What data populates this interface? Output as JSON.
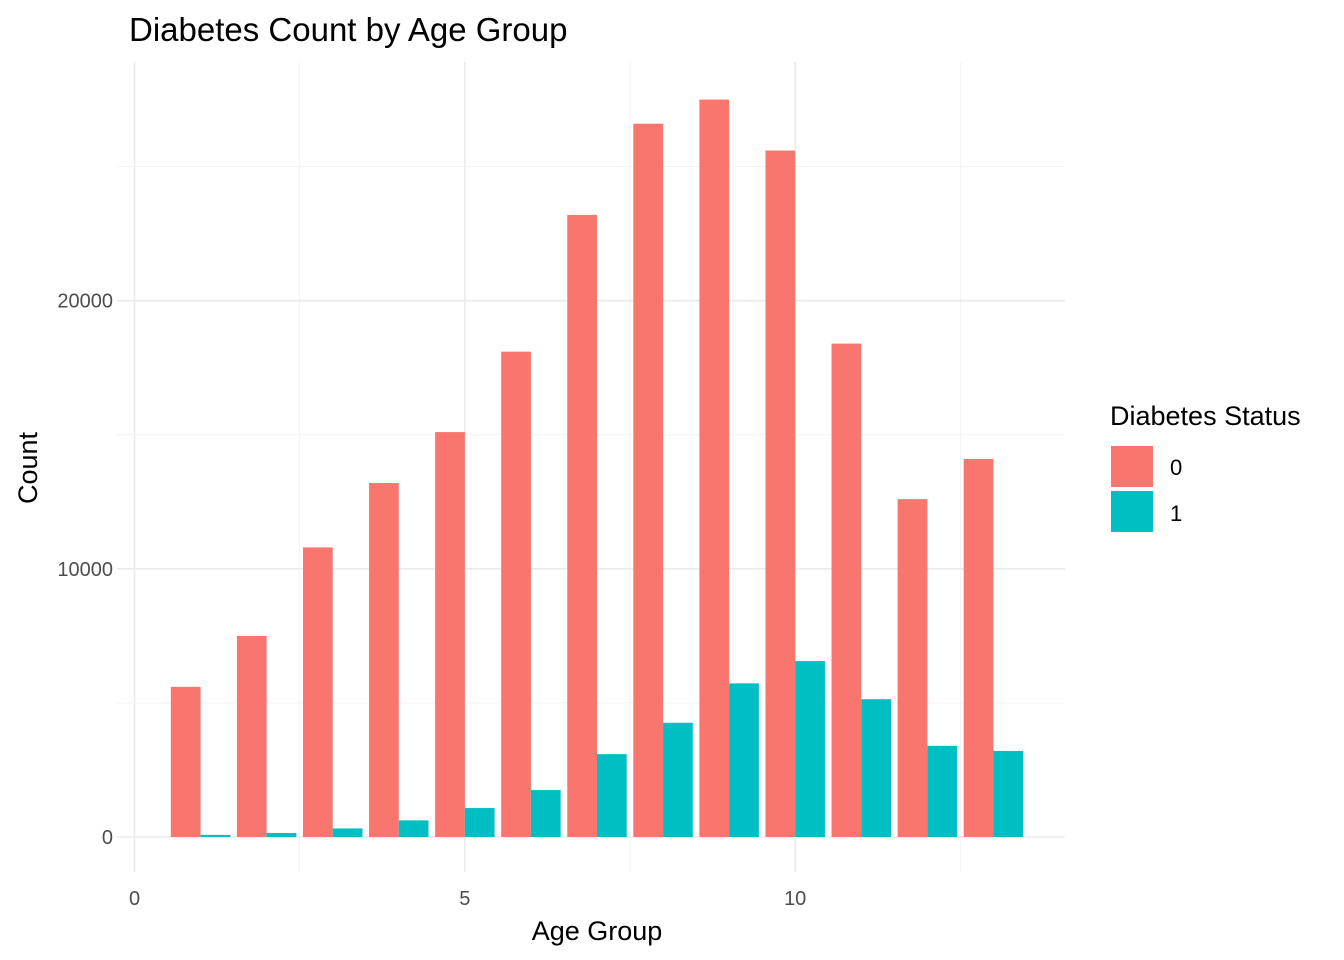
{
  "chart_data": {
    "type": "bar",
    "title": "Diabetes Count by Age Group",
    "xlabel": "Age Group",
    "ylabel": "Count",
    "x": [
      1,
      2,
      3,
      4,
      5,
      6,
      7,
      8,
      9,
      10,
      11,
      12,
      13
    ],
    "xlim": [
      0,
      14
    ],
    "ylim": [
      -1300,
      28500
    ],
    "xticks": [
      "0",
      "5",
      "10"
    ],
    "yticks": [
      "0",
      "10000",
      "20000"
    ],
    "grid": true,
    "legend_title": "Diabetes Status",
    "legend_position": "right",
    "series": [
      {
        "name": "0",
        "color": "#F8766D",
        "values": [
          5600,
          7500,
          10800,
          13200,
          15100,
          18100,
          23200,
          26600,
          27500,
          25600,
          18400,
          12600,
          14100
        ]
      },
      {
        "name": "1",
        "color": "#00BFC4",
        "values": [
          80,
          150,
          320,
          620,
          1080,
          1750,
          3090,
          4260,
          5730,
          6560,
          5140,
          3400,
          3210
        ]
      }
    ]
  }
}
